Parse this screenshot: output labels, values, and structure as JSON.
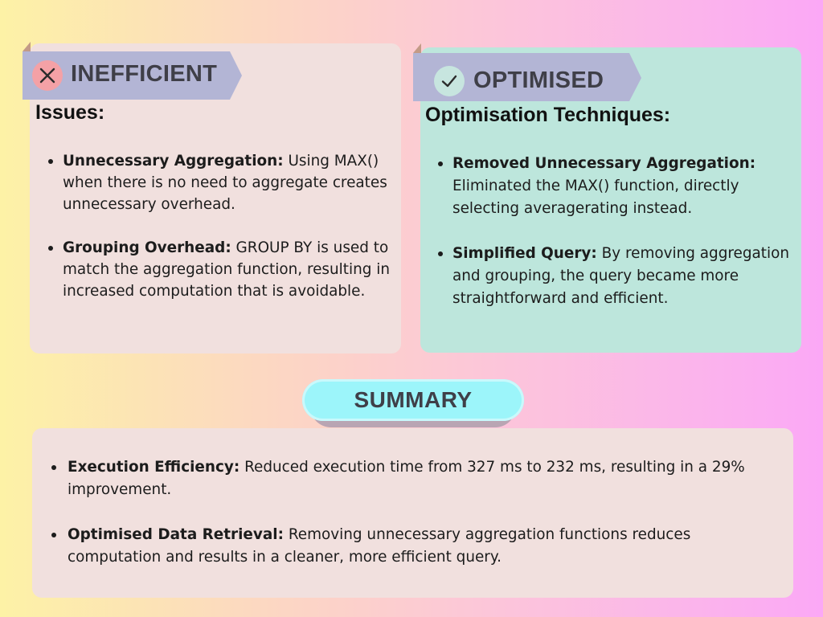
{
  "inefficient": {
    "badge_label": "INEFFICIENT",
    "heading": "Issues:",
    "items": [
      {
        "title": "Unnecessary Aggregation:",
        "text": " Using MAX() when there is no need to aggregate creates unnecessary overhead."
      },
      {
        "title": "Grouping Overhead:",
        "text": " GROUP BY is used to match the aggregation function, resulting in increased computation that is avoidable."
      }
    ]
  },
  "optimised": {
    "badge_label": "OPTIMISED",
    "heading": "Optimisation Techniques:",
    "items": [
      {
        "title": "Removed Unnecessary Aggregation:",
        "text": " Eliminated the MAX() function, directly selecting averagerating instead."
      },
      {
        "title": "Simplified Query:",
        "text": " By removing aggregation and grouping, the query became more straightforward and efficient."
      }
    ]
  },
  "summary": {
    "label": "SUMMARY",
    "items": [
      {
        "title": "Execution Efficiency:",
        "text": " Reduced execution time from 327 ms to 232 ms, resulting in a 29% improvement."
      },
      {
        "title": "Optimised Data Retrieval:",
        "text": " Removing unnecessary aggregation functions reduces computation and results in a cleaner, more efficient query."
      }
    ]
  },
  "icons": {
    "inefficient": "close-icon",
    "optimised": "check-icon"
  },
  "colors": {
    "panel_left": "#f1e0de",
    "panel_right": "#bde6dc",
    "ribbon": "#b3b5d5",
    "pill": "#9cf5fa",
    "badge_x": "#f4a1a6",
    "badge_check": "#c7e5df"
  }
}
